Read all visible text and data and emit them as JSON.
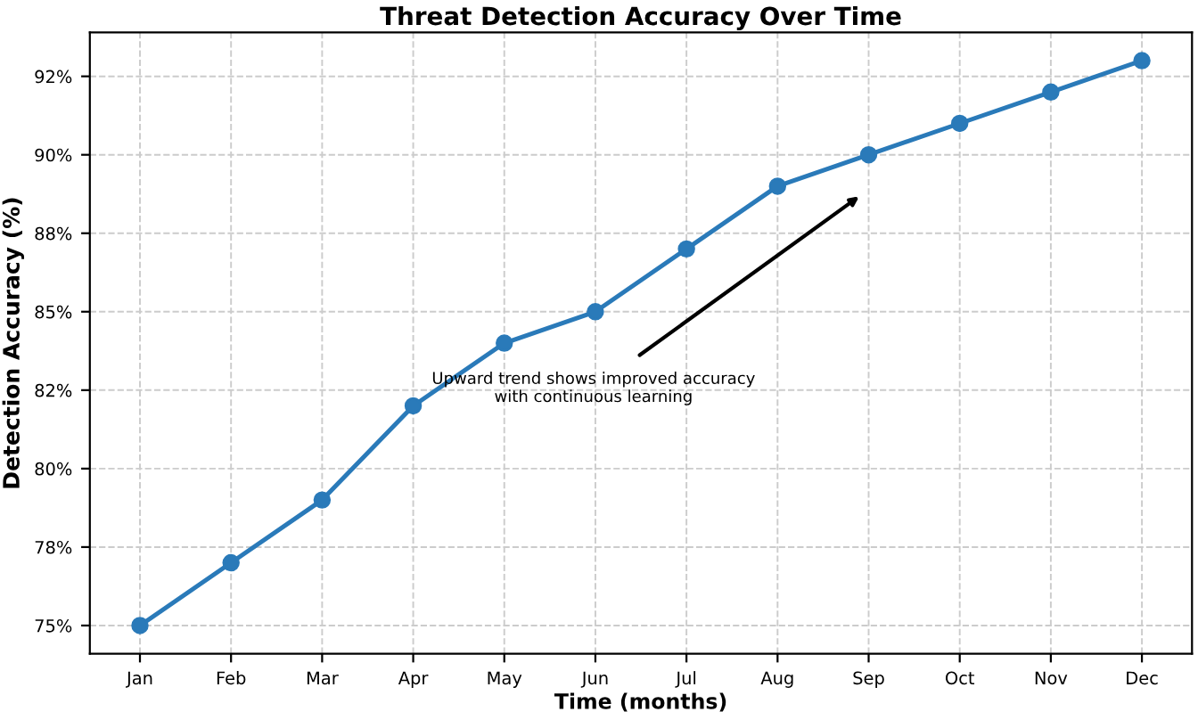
{
  "chart_data": {
    "type": "line",
    "title": "Threat Detection Accuracy Over Time",
    "xlabel": "Time (months)",
    "ylabel": "Detection Accuracy (%)",
    "categories": [
      "Jan",
      "Feb",
      "Mar",
      "Apr",
      "May",
      "Jun",
      "Jul",
      "Aug",
      "Sep",
      "Oct",
      "Nov",
      "Dec"
    ],
    "series": [
      {
        "color": "#2a7ab9",
        "values": [
          75,
          77,
          79,
          82,
          84,
          85,
          87,
          89,
          90,
          91,
          92,
          93
        ]
      }
    ],
    "ylim": [
      74.1,
      93.9
    ],
    "yticks": [
      {
        "value": 75,
        "label": "75%"
      },
      {
        "value": 77.5,
        "label": "78%"
      },
      {
        "value": 80,
        "label": "80%"
      },
      {
        "value": 82.5,
        "label": "82%"
      },
      {
        "value": 85,
        "label": "85%"
      },
      {
        "value": 87.5,
        "label": "88%"
      },
      {
        "value": 90,
        "label": "90%"
      },
      {
        "value": 92.5,
        "label": "92%"
      }
    ],
    "annotations": [
      "Upward trend shows improved accuracy\nwith continuous learning"
    ],
    "grid": true,
    "marker": "circle",
    "line_style": "solid"
  }
}
